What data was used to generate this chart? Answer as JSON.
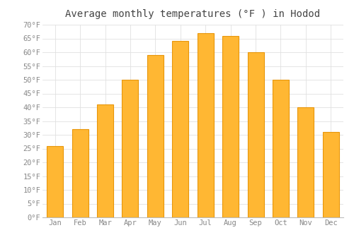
{
  "title": "Average monthly temperatures (°F ) in Hodod",
  "months": [
    "Jan",
    "Feb",
    "Mar",
    "Apr",
    "May",
    "Jun",
    "Jul",
    "Aug",
    "Sep",
    "Oct",
    "Nov",
    "Dec"
  ],
  "values": [
    26,
    32,
    41,
    50,
    59,
    64,
    67,
    66,
    60,
    50,
    40,
    31
  ],
  "bar_color_face": "#FFB733",
  "bar_color_edge": "#E8960A",
  "background_color": "#FFFFFF",
  "grid_color": "#E0E0E0",
  "ylim": [
    0,
    70
  ],
  "yticks": [
    0,
    5,
    10,
    15,
    20,
    25,
    30,
    35,
    40,
    45,
    50,
    55,
    60,
    65,
    70
  ],
  "title_fontsize": 10,
  "tick_fontsize": 7.5,
  "font_family": "monospace"
}
